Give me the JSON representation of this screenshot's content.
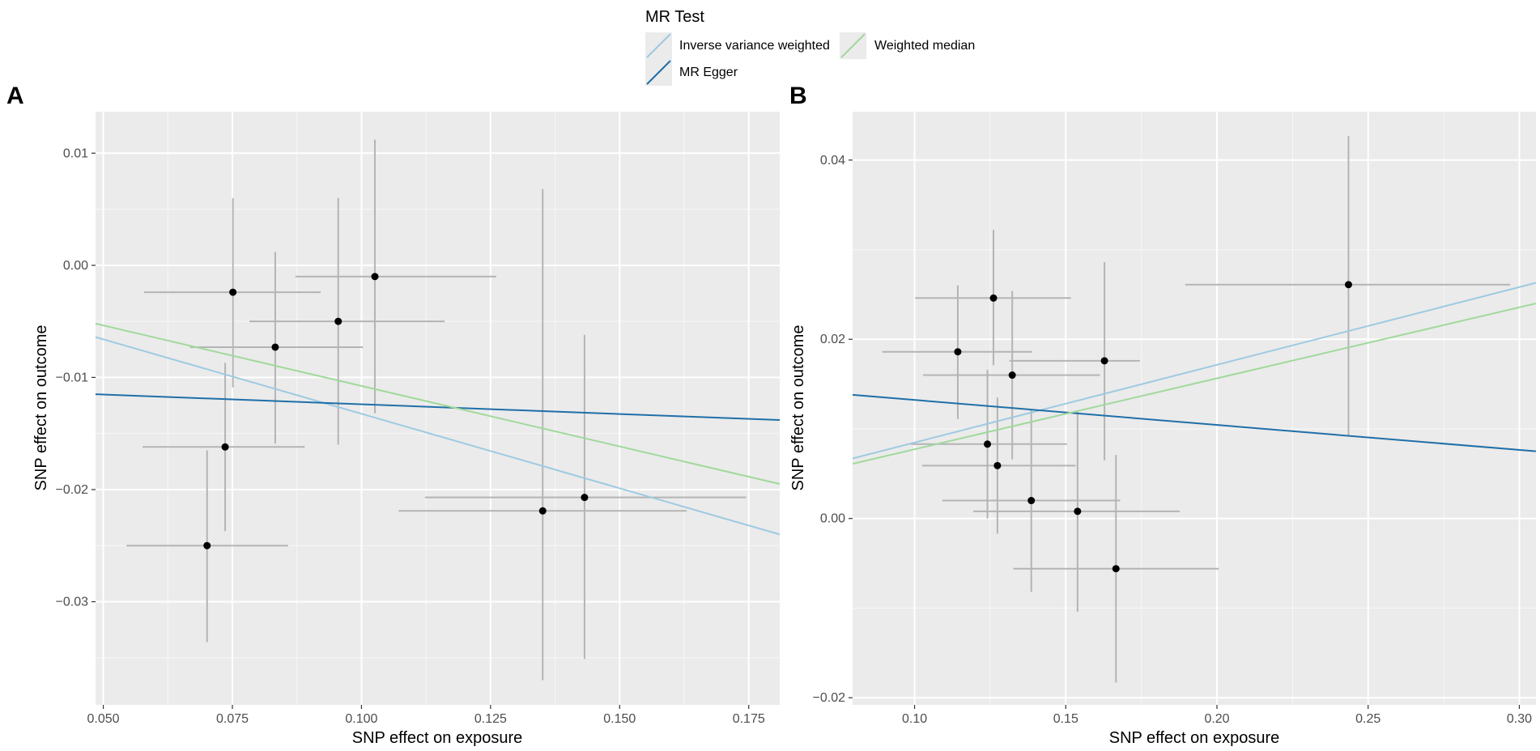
{
  "legend": {
    "title": "MR Test",
    "entries": [
      {
        "label": "Inverse variance weighted",
        "color": "#9ecae1"
      },
      {
        "label": "MR Egger",
        "color": "#1f6fa8"
      },
      {
        "label": "Weighted median",
        "color": "#a1d99b"
      }
    ]
  },
  "colors": {
    "panel_bg": "#ebebeb",
    "grid_major": "#ffffff",
    "errorbar": "#b4b4b4",
    "point": "#000000"
  },
  "chart_data": [
    {
      "type": "scatter",
      "panel_label": "A",
      "xlabel": "SNP effect on exposure",
      "ylabel": "SNP effect on outcome",
      "xlim": [
        0.0485,
        0.181
      ],
      "ylim": [
        -0.0392,
        0.0137
      ],
      "xticks": [
        0.05,
        0.075,
        0.1,
        0.125,
        0.15,
        0.175
      ],
      "xtick_labels": [
        "0.050",
        "0.075",
        "0.100",
        "0.125",
        "0.150",
        "0.175"
      ],
      "yticks": [
        -0.03,
        -0.02,
        -0.01,
        0.0,
        0.01
      ],
      "ytick_labels": [
        "−0.03",
        "−0.02",
        "−0.01",
        "0.00",
        "0.01"
      ],
      "points": [
        {
          "x": 0.0751,
          "y": -0.0024,
          "xlo": 0.0579,
          "xhi": 0.0921,
          "ylo": -0.0109,
          "yhi": 0.006
        },
        {
          "x": 0.0833,
          "y": -0.0073,
          "xlo": 0.0668,
          "xhi": 0.1003,
          "ylo": -0.0159,
          "yhi": 0.0012
        },
        {
          "x": 0.0955,
          "y": -0.005,
          "xlo": 0.0783,
          "xhi": 0.1161,
          "ylo": -0.016,
          "yhi": 0.006
        },
        {
          "x": 0.1026,
          "y": -0.001,
          "xlo": 0.0872,
          "xhi": 0.1261,
          "ylo": -0.0132,
          "yhi": 0.0112
        },
        {
          "x": 0.0736,
          "y": -0.0162,
          "xlo": 0.0576,
          "xhi": 0.089,
          "ylo": -0.0237,
          "yhi": -0.0087
        },
        {
          "x": 0.0701,
          "y": -0.025,
          "xlo": 0.0545,
          "xhi": 0.0858,
          "ylo": -0.0336,
          "yhi": -0.0165
        },
        {
          "x": 0.1351,
          "y": -0.0219,
          "xlo": 0.1072,
          "xhi": 0.163,
          "ylo": -0.037,
          "yhi": 0.0068
        },
        {
          "x": 0.1432,
          "y": -0.0207,
          "xlo": 0.1123,
          "xhi": 0.1745,
          "ylo": -0.0351,
          "yhi": -0.0062
        }
      ],
      "lines": [
        {
          "name": "Inverse variance weighted",
          "x": [
            0.0485,
            0.181
          ],
          "y": [
            -0.0064,
            -0.024
          ]
        },
        {
          "name": "MR Egger",
          "x": [
            0.0485,
            0.181
          ],
          "y": [
            -0.0115,
            -0.0138
          ]
        },
        {
          "name": "Weighted median",
          "x": [
            0.0485,
            0.181
          ],
          "y": [
            -0.0052,
            -0.0195
          ]
        }
      ]
    },
    {
      "type": "scatter",
      "panel_label": "B",
      "xlabel": "SNP effect on exposure",
      "ylabel": "SNP effect on outcome",
      "xlim": [
        0.0795,
        0.3055
      ],
      "ylim": [
        -0.0208,
        0.0454
      ],
      "xticks": [
        0.1,
        0.15,
        0.2,
        0.25,
        0.3
      ],
      "xtick_labels": [
        "0.10",
        "0.15",
        "0.20",
        "0.25",
        "0.30"
      ],
      "yticks": [
        -0.02,
        0.0,
        0.02,
        0.04
      ],
      "ytick_labels": [
        "−0.02",
        "0.00",
        "0.02",
        "0.04"
      ],
      "points": [
        {
          "x": 0.1143,
          "y": 0.0186,
          "xlo": 0.0893,
          "xhi": 0.1389,
          "ylo": 0.0111,
          "yhi": 0.026
        },
        {
          "x": 0.1261,
          "y": 0.0246,
          "xlo": 0.1002,
          "xhi": 0.1517,
          "ylo": 0.0171,
          "yhi": 0.0322
        },
        {
          "x": 0.1323,
          "y": 0.016,
          "xlo": 0.1028,
          "xhi": 0.1613,
          "ylo": 0.0066,
          "yhi": 0.0254
        },
        {
          "x": 0.1628,
          "y": 0.0176,
          "xlo": 0.1314,
          "xhi": 0.1745,
          "ylo": 0.0065,
          "yhi": 0.0286
        },
        {
          "x": 0.1241,
          "y": 0.0083,
          "xlo": 0.0988,
          "xhi": 0.1504,
          "ylo": 0.0,
          "yhi": 0.0166
        },
        {
          "x": 0.1274,
          "y": 0.0059,
          "xlo": 0.1025,
          "xhi": 0.1533,
          "ylo": -0.0017,
          "yhi": 0.0135
        },
        {
          "x": 0.1386,
          "y": 0.002,
          "xlo": 0.1092,
          "xhi": 0.168,
          "ylo": -0.0082,
          "yhi": 0.0122
        },
        {
          "x": 0.1539,
          "y": 0.0008,
          "xlo": 0.1194,
          "xhi": 0.1877,
          "ylo": -0.0104,
          "yhi": 0.012
        },
        {
          "x": 0.1666,
          "y": -0.0056,
          "xlo": 0.1327,
          "xhi": 0.2006,
          "ylo": -0.0183,
          "yhi": 0.0071
        },
        {
          "x": 0.2435,
          "y": 0.0261,
          "xlo": 0.1895,
          "xhi": 0.297,
          "ylo": 0.0093,
          "yhi": 0.0427
        }
      ],
      "lines": [
        {
          "name": "Inverse variance weighted",
          "x": [
            0.0795,
            0.3055
          ],
          "y": [
            0.0067,
            0.0263
          ]
        },
        {
          "name": "MR Egger",
          "x": [
            0.0795,
            0.3055
          ],
          "y": [
            0.0138,
            0.0075
          ]
        },
        {
          "name": "Weighted median",
          "x": [
            0.0795,
            0.3055
          ],
          "y": [
            0.0061,
            0.024
          ]
        }
      ]
    }
  ]
}
